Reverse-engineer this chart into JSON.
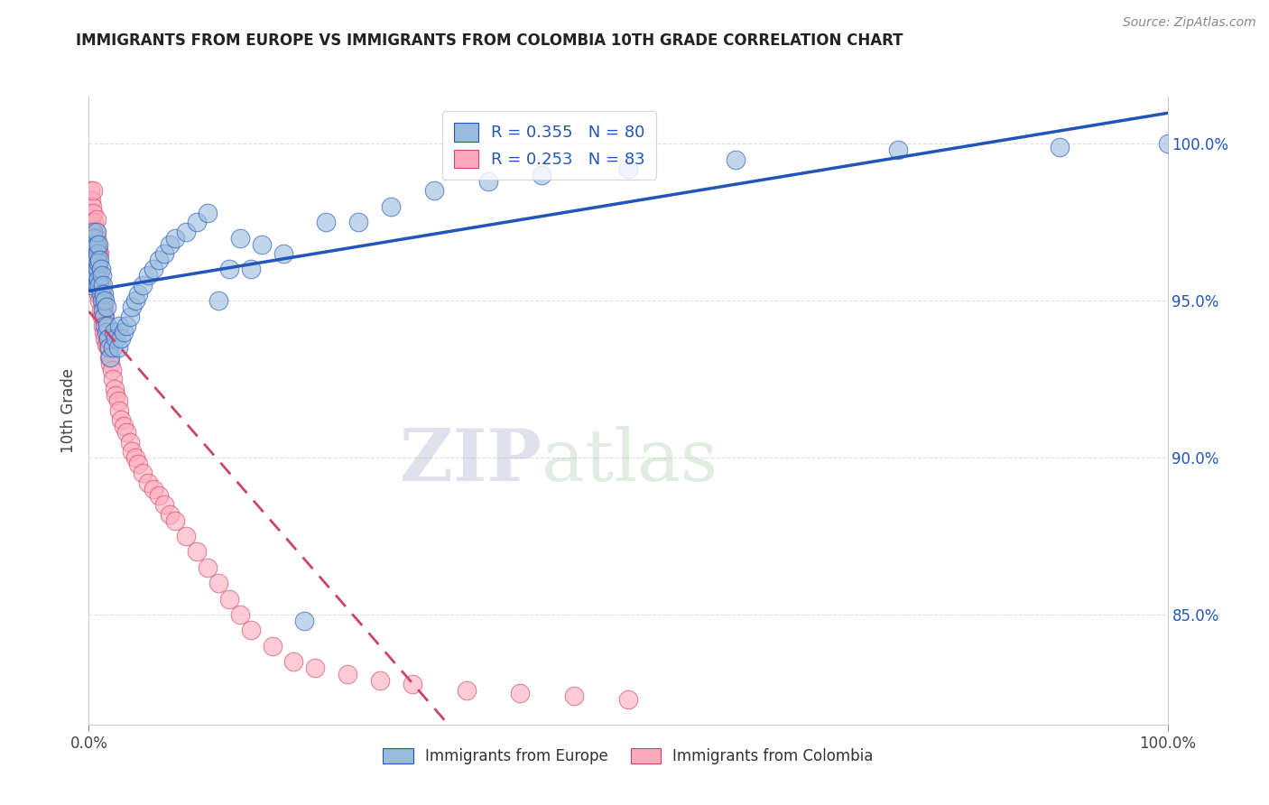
{
  "title": "IMMIGRANTS FROM EUROPE VS IMMIGRANTS FROM COLOMBIA 10TH GRADE CORRELATION CHART",
  "source": "Source: ZipAtlas.com",
  "ylabel": "10th Grade",
  "blue_R": 0.355,
  "blue_N": 80,
  "pink_R": 0.253,
  "pink_N": 83,
  "blue_color": "#99bbdd",
  "pink_color": "#ffaabb",
  "blue_line_color": "#2255bb",
  "pink_line_color": "#cc4466",
  "watermark_zip": "ZIP",
  "watermark_atlas": "atlas",
  "legend_blue": "Immigrants from Europe",
  "legend_pink": "Immigrants from Colombia",
  "blue_x": [
    0.001,
    0.002,
    0.003,
    0.003,
    0.004,
    0.004,
    0.005,
    0.005,
    0.005,
    0.006,
    0.006,
    0.006,
    0.007,
    0.007,
    0.007,
    0.007,
    0.008,
    0.008,
    0.008,
    0.009,
    0.009,
    0.009,
    0.01,
    0.01,
    0.011,
    0.011,
    0.012,
    0.012,
    0.013,
    0.013,
    0.014,
    0.014,
    0.015,
    0.015,
    0.016,
    0.016,
    0.017,
    0.018,
    0.019,
    0.02,
    0.022,
    0.023,
    0.025,
    0.027,
    0.028,
    0.03,
    0.032,
    0.035,
    0.038,
    0.04,
    0.043,
    0.046,
    0.05,
    0.055,
    0.06,
    0.065,
    0.07,
    0.075,
    0.08,
    0.09,
    0.1,
    0.11,
    0.12,
    0.13,
    0.14,
    0.15,
    0.16,
    0.18,
    0.2,
    0.22,
    0.25,
    0.28,
    0.32,
    0.37,
    0.42,
    0.5,
    0.6,
    0.75,
    0.9,
    1.0
  ],
  "blue_y": [
    0.96,
    0.955,
    0.97,
    0.958,
    0.965,
    0.972,
    0.958,
    0.963,
    0.97,
    0.956,
    0.961,
    0.967,
    0.958,
    0.963,
    0.968,
    0.972,
    0.955,
    0.96,
    0.965,
    0.957,
    0.962,
    0.968,
    0.955,
    0.963,
    0.952,
    0.96,
    0.95,
    0.958,
    0.947,
    0.955,
    0.945,
    0.952,
    0.942,
    0.95,
    0.94,
    0.948,
    0.942,
    0.938,
    0.935,
    0.932,
    0.935,
    0.94,
    0.938,
    0.935,
    0.942,
    0.938,
    0.94,
    0.942,
    0.945,
    0.948,
    0.95,
    0.952,
    0.955,
    0.958,
    0.96,
    0.963,
    0.965,
    0.968,
    0.97,
    0.972,
    0.975,
    0.978,
    0.95,
    0.96,
    0.97,
    0.96,
    0.968,
    0.965,
    0.848,
    0.975,
    0.975,
    0.98,
    0.985,
    0.988,
    0.99,
    0.992,
    0.995,
    0.998,
    0.999,
    1.0
  ],
  "pink_x": [
    0.001,
    0.001,
    0.002,
    0.002,
    0.002,
    0.003,
    0.003,
    0.003,
    0.004,
    0.004,
    0.004,
    0.004,
    0.005,
    0.005,
    0.005,
    0.006,
    0.006,
    0.006,
    0.007,
    0.007,
    0.007,
    0.007,
    0.008,
    0.008,
    0.008,
    0.009,
    0.009,
    0.009,
    0.01,
    0.01,
    0.01,
    0.011,
    0.011,
    0.012,
    0.012,
    0.013,
    0.013,
    0.014,
    0.014,
    0.015,
    0.015,
    0.016,
    0.017,
    0.018,
    0.019,
    0.02,
    0.021,
    0.022,
    0.024,
    0.025,
    0.027,
    0.028,
    0.03,
    0.032,
    0.035,
    0.038,
    0.04,
    0.043,
    0.046,
    0.05,
    0.055,
    0.06,
    0.065,
    0.07,
    0.075,
    0.08,
    0.09,
    0.1,
    0.11,
    0.12,
    0.13,
    0.14,
    0.15,
    0.17,
    0.19,
    0.21,
    0.24,
    0.27,
    0.3,
    0.35,
    0.4,
    0.45,
    0.5
  ],
  "pink_y": [
    0.975,
    0.985,
    0.968,
    0.975,
    0.982,
    0.965,
    0.972,
    0.98,
    0.962,
    0.97,
    0.978,
    0.985,
    0.96,
    0.968,
    0.975,
    0.958,
    0.965,
    0.972,
    0.957,
    0.963,
    0.97,
    0.976,
    0.955,
    0.962,
    0.968,
    0.952,
    0.96,
    0.966,
    0.95,
    0.958,
    0.965,
    0.947,
    0.955,
    0.945,
    0.952,
    0.942,
    0.95,
    0.94,
    0.948,
    0.938,
    0.945,
    0.936,
    0.938,
    0.935,
    0.932,
    0.93,
    0.928,
    0.925,
    0.922,
    0.92,
    0.918,
    0.915,
    0.912,
    0.91,
    0.908,
    0.905,
    0.902,
    0.9,
    0.898,
    0.895,
    0.892,
    0.89,
    0.888,
    0.885,
    0.882,
    0.88,
    0.875,
    0.87,
    0.865,
    0.86,
    0.855,
    0.85,
    0.845,
    0.84,
    0.835,
    0.833,
    0.831,
    0.829,
    0.828,
    0.826,
    0.825,
    0.824,
    0.823
  ],
  "ytick_positions": [
    0.85,
    0.9,
    0.95,
    1.0
  ],
  "ytick_labels": [
    "85.0%",
    "90.0%",
    "95.0%",
    "100.0%"
  ],
  "xtick_positions": [
    0.0,
    1.0
  ],
  "xtick_labels": [
    "0.0%",
    "100.0%"
  ],
  "xlim": [
    0.0,
    1.0
  ],
  "ylim": [
    0.815,
    1.015
  ],
  "background_color": "#ffffff",
  "grid_color": "#dddddd"
}
